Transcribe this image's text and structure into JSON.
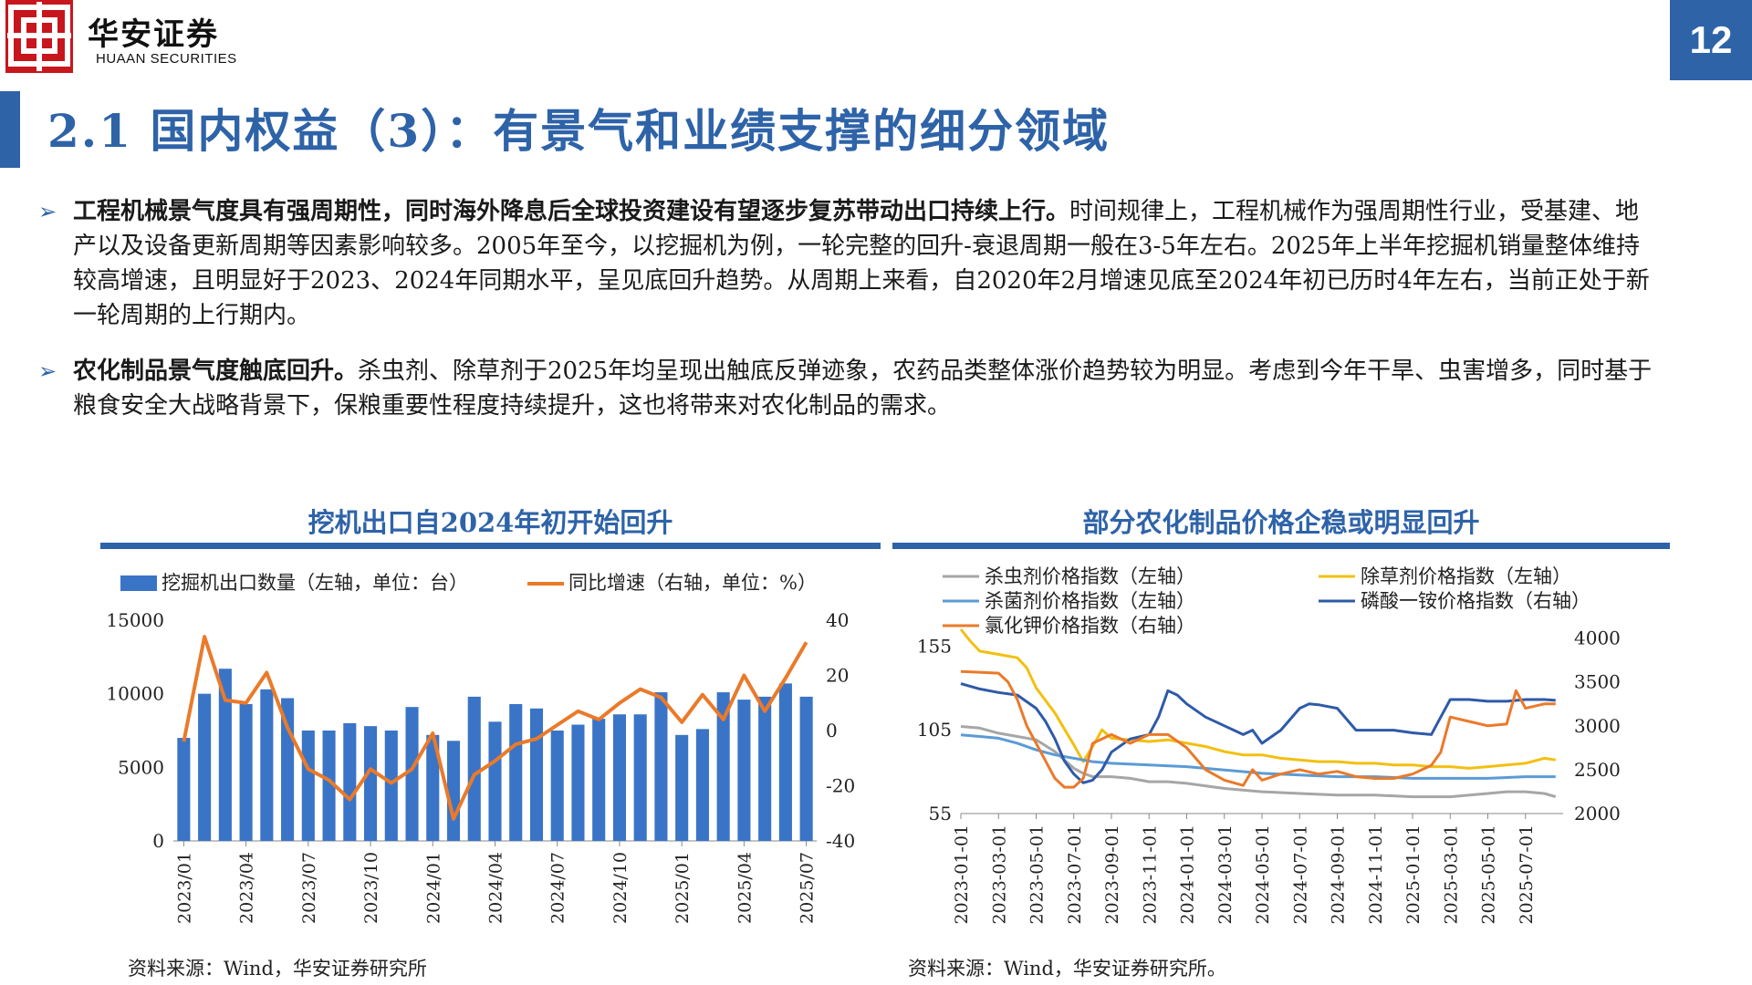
{
  "header": {
    "brand_cn": "华安证券",
    "brand_en": "HUAAN SECURITIES",
    "page_number": "12",
    "accent_color": "#2e63a8",
    "logo_color": "#c8161d"
  },
  "title": "2.1 国内权益（3）：有景气和业绩支撑的细分领域",
  "bullets": [
    {
      "bold": "工程机械景气度具有强周期性，同时海外降息后全球投资建设有望逐步复苏带动出口持续上行。",
      "text": "时间规律上，工程机械作为强周期性行业，受基建、地产以及设备更新周期等因素影响较多。2005年至今，以挖掘机为例，一轮完整的回升-衰退周期一般在3-5年左右。2025年上半年挖掘机销量整体维持较高增速，且明显好于2023、2024年同期水平，呈见底回升趋势。从周期上来看，自2020年2月增速见底至2024年初已历时4年左右，当前正处于新一轮周期的上行期内。"
    },
    {
      "bold": "农化制品景气度触底回升。",
      "text": "杀虫剂、除草剂于2025年均呈现出触底反弹迹象，农药品类整体涨价趋势较为明显。考虑到今年干旱、虫害增多，同时基于粮食安全大战略背景下，保粮重要性程度持续提升，这也将带来对农化制品的需求。"
    }
  ],
  "chart_data": [
    {
      "type": "bar",
      "title": "挖机出口自2024年初开始回升",
      "source": "资料来源：Wind，华安证券研究所",
      "legend": [
        "挖掘机出口数量（左轴，单位：台）",
        "同比增速（右轴，单位：%）"
      ],
      "legend_position": "top",
      "x": [
        "2023/01",
        "2023/02",
        "2023/03",
        "2023/04",
        "2023/05",
        "2023/06",
        "2023/07",
        "2023/08",
        "2023/09",
        "2023/10",
        "2023/11",
        "2023/12",
        "2024/01",
        "2024/02",
        "2024/03",
        "2024/04",
        "2024/05",
        "2024/06",
        "2024/07",
        "2024/08",
        "2024/09",
        "2024/10",
        "2024/11",
        "2024/12",
        "2025/01",
        "2025/02",
        "2025/03",
        "2025/04",
        "2025/05",
        "2025/06",
        "2025/07"
      ],
      "x_tick_labels": [
        "2023/01",
        "2023/04",
        "2023/07",
        "2023/10",
        "2024/01",
        "2024/04",
        "2024/07",
        "2024/10",
        "2025/01",
        "2025/04",
        "2025/07"
      ],
      "series": [
        {
          "name": "挖掘机出口数量（左轴，单位：台）",
          "axis": "left",
          "kind": "bar",
          "color": "#3a74c6",
          "values": [
            7000,
            10000,
            11700,
            9300,
            10300,
            9700,
            7500,
            7500,
            8000,
            7800,
            7500,
            9100,
            7200,
            6800,
            9800,
            8100,
            9300,
            9000,
            7500,
            7900,
            8300,
            8600,
            8600,
            10100,
            7200,
            7600,
            10100,
            9600,
            9800,
            10700,
            9800
          ]
        },
        {
          "name": "同比增速（右轴，单位：%）",
          "axis": "right",
          "kind": "line",
          "color": "#ea7a2a",
          "values": [
            -4,
            34,
            11,
            10,
            21,
            1,
            -14,
            -18,
            -25,
            -14,
            -19,
            -14,
            -1,
            -32,
            -16,
            -11,
            -5,
            -3,
            2,
            7,
            4,
            10,
            15,
            12,
            3,
            13,
            4,
            20,
            7,
            19,
            32
          ]
        }
      ],
      "y_left": {
        "min": 0,
        "max": 15000,
        "ticks": [
          0,
          5000,
          10000,
          15000
        ]
      },
      "y_right": {
        "min": -40,
        "max": 40,
        "ticks": [
          -40,
          -20,
          0,
          20,
          40
        ]
      },
      "grid": false
    },
    {
      "type": "line",
      "title": "部分农化制品价格企稳或明显回升",
      "source": "资料来源：Wind，华安证券研究所。",
      "legend_position": "top",
      "x_tick_labels": [
        "2023-01-01",
        "2023-03-01",
        "2023-05-01",
        "2023-07-01",
        "2023-09-01",
        "2023-11-01",
        "2024-01-01",
        "2024-03-01",
        "2024-05-01",
        "2024-07-01",
        "2024-09-01",
        "2024-11-01",
        "2025-01-01",
        "2025-03-01",
        "2025-05-01",
        "2025-07-01"
      ],
      "x_range": [
        0,
        32
      ],
      "y_left": {
        "min": 55,
        "max": 165,
        "ticks": [
          55,
          105,
          155
        ]
      },
      "y_right": {
        "min": 2000,
        "max": 4100,
        "ticks": [
          2000,
          2500,
          3000,
          3500,
          4000
        ]
      },
      "grid": false,
      "series": [
        {
          "name": "杀虫剂价格指数（左轴）",
          "axis": "left",
          "color": "#a6a6a6",
          "x": [
            0,
            1,
            2,
            3,
            4,
            5,
            6,
            6.5,
            7,
            8,
            9,
            10,
            11,
            12,
            14,
            16,
            18,
            20,
            22,
            24,
            26,
            28,
            29,
            30,
            31,
            31.6
          ],
          "y": [
            107,
            106,
            103,
            101,
            99,
            92,
            82,
            79,
            77,
            77,
            76,
            74,
            74,
            73,
            70,
            68,
            67,
            66,
            66,
            65,
            65,
            67,
            68,
            68,
            67,
            65
          ]
        },
        {
          "name": "除草剂价格指数（左轴）",
          "axis": "left",
          "color": "#f2c010",
          "x": [
            0,
            0.5,
            1,
            2,
            3,
            3.5,
            4,
            5,
            6,
            6.5,
            7,
            7.5,
            8,
            9,
            10,
            11,
            12,
            13,
            14,
            15,
            16,
            17,
            18,
            19,
            20,
            21,
            22,
            23,
            24,
            25,
            26,
            27,
            28,
            29,
            30,
            31,
            31.6
          ],
          "y": [
            165,
            158,
            152,
            150,
            148,
            142,
            130,
            115,
            96,
            86,
            95,
            105,
            100,
            99,
            98,
            99,
            97,
            95,
            92,
            90,
            90,
            88,
            87,
            86,
            86,
            85,
            85,
            84,
            84,
            83,
            83,
            82,
            83,
            84,
            85,
            88,
            87
          ]
        },
        {
          "name": "杀菌剂价格指数（左轴）",
          "axis": "left",
          "color": "#5b9bd5",
          "x": [
            0,
            1,
            2,
            3,
            4,
            5,
            6,
            7,
            8,
            10,
            12,
            14,
            16,
            18,
            20,
            22,
            24,
            26,
            28,
            30,
            31.6
          ],
          "y": [
            102,
            101,
            100,
            97,
            93,
            90,
            88,
            86,
            85,
            84,
            83,
            81,
            79,
            78,
            77,
            77,
            76,
            76,
            76,
            77,
            77
          ]
        },
        {
          "name": "磷酸一铵价格指数（右轴）",
          "axis": "right",
          "color": "#2e5aa8",
          "x": [
            0,
            1,
            2,
            3,
            4,
            4.5,
            5,
            5.5,
            6,
            6.5,
            7,
            7.5,
            8,
            9,
            10,
            10.5,
            11,
            11.5,
            12,
            13,
            14,
            15,
            15.5,
            16,
            17,
            18,
            18.5,
            19,
            20,
            21,
            22,
            23,
            24,
            25,
            25.5,
            26,
            27,
            28,
            29,
            30,
            31,
            31.6
          ],
          "y": [
            3480,
            3420,
            3380,
            3350,
            3200,
            3050,
            2850,
            2600,
            2450,
            2350,
            2380,
            2500,
            2700,
            2850,
            2900,
            3100,
            3400,
            3350,
            3250,
            3100,
            3000,
            2900,
            2950,
            2800,
            2950,
            3200,
            3250,
            3240,
            3200,
            2950,
            2950,
            2950,
            2920,
            2900,
            3100,
            3300,
            3300,
            3280,
            3280,
            3300,
            3300,
            3290
          ]
        },
        {
          "name": "氯化钾价格指数（右轴）",
          "axis": "right",
          "color": "#ea7a2a",
          "x": [
            0,
            1,
            2,
            2.5,
            3,
            3.5,
            4,
            4.5,
            5,
            5.5,
            6,
            6.5,
            7,
            8,
            9,
            10,
            11,
            12,
            13,
            14,
            15,
            15.5,
            16,
            17,
            18,
            19,
            20,
            21,
            22,
            23,
            24,
            25,
            25.5,
            26,
            27,
            28,
            29,
            29.5,
            30,
            31,
            31.6
          ],
          "y": [
            3620,
            3610,
            3600,
            3500,
            3300,
            3000,
            2800,
            2600,
            2400,
            2300,
            2300,
            2400,
            2800,
            2900,
            2800,
            2900,
            2900,
            2750,
            2500,
            2380,
            2320,
            2500,
            2380,
            2450,
            2500,
            2450,
            2480,
            2420,
            2400,
            2400,
            2450,
            2550,
            2700,
            3100,
            3050,
            3000,
            3020,
            3400,
            3200,
            3250,
            3250
          ]
        }
      ]
    }
  ]
}
